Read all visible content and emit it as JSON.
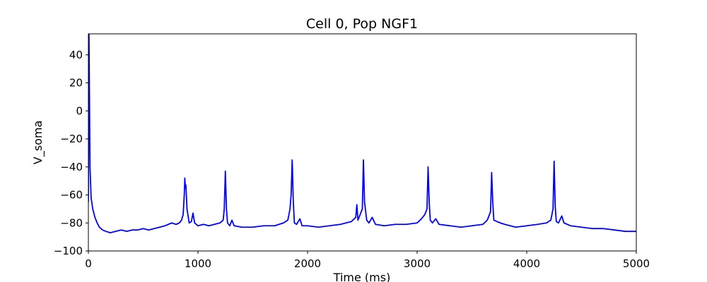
{
  "chart_data": {
    "type": "line",
    "title": "Cell 0, Pop NGF1",
    "x_label": "Time (ms)",
    "y_label": "V_soma",
    "x": [
      0,
      5,
      10,
      15,
      25,
      40,
      60,
      80,
      100,
      130,
      160,
      200,
      250,
      300,
      350,
      400,
      450,
      500,
      550,
      600,
      650,
      700,
      730,
      760,
      800,
      830,
      850,
      865,
      875,
      880,
      885,
      890,
      900,
      920,
      940,
      955,
      970,
      1000,
      1050,
      1100,
      1150,
      1200,
      1230,
      1240,
      1250,
      1260,
      1270,
      1290,
      1310,
      1330,
      1400,
      1500,
      1600,
      1700,
      1780,
      1820,
      1840,
      1850,
      1860,
      1870,
      1880,
      1900,
      1930,
      1950,
      2000,
      2100,
      2200,
      2300,
      2400,
      2440,
      2450,
      2460,
      2480,
      2500,
      2510,
      2520,
      2540,
      2560,
      2590,
      2620,
      2700,
      2800,
      2900,
      3000,
      3040,
      3070,
      3090,
      3100,
      3110,
      3120,
      3140,
      3170,
      3200,
      3300,
      3400,
      3500,
      3600,
      3640,
      3670,
      3680,
      3690,
      3700,
      3730,
      3760,
      3800,
      3900,
      4000,
      4100,
      4180,
      4220,
      4240,
      4250,
      4260,
      4270,
      4290,
      4320,
      4340,
      4400,
      4500,
      4600,
      4700,
      4800,
      4900,
      5000
    ],
    "series": [
      {
        "name": "V_soma",
        "color": "#0000ff",
        "values": [
          -65,
          60,
          10,
          -40,
          -62,
          -70,
          -76,
          -80,
          -83,
          -85,
          -86,
          -87,
          -86,
          -85,
          -86,
          -85,
          -85,
          -84,
          -85,
          -84,
          -83,
          -82,
          -81,
          -80,
          -81,
          -80,
          -78,
          -74,
          -60,
          -48,
          -55,
          -53,
          -70,
          -80,
          -79,
          -73,
          -80,
          -82,
          -81,
          -82,
          -81,
          -80,
          -78,
          -70,
          -43,
          -70,
          -80,
          -82,
          -78,
          -82,
          -83,
          -83,
          -82,
          -82,
          -80,
          -78,
          -70,
          -60,
          -35,
          -65,
          -80,
          -81,
          -77,
          -82,
          -82,
          -83,
          -82,
          -81,
          -79,
          -76,
          -67,
          -78,
          -74,
          -70,
          -35,
          -65,
          -78,
          -80,
          -76,
          -81,
          -82,
          -81,
          -81,
          -80,
          -77,
          -74,
          -70,
          -40,
          -65,
          -78,
          -80,
          -77,
          -81,
          -82,
          -83,
          -82,
          -81,
          -78,
          -72,
          -44,
          -65,
          -78,
          -79,
          -80,
          -81,
          -83,
          -82,
          -81,
          -80,
          -78,
          -70,
          -36,
          -68,
          -79,
          -80,
          -75,
          -80,
          -82,
          -83,
          -84,
          -84,
          -85,
          -86,
          -86
        ]
      }
    ],
    "xlim": [
      0,
      5000
    ],
    "ylim": [
      -100,
      55
    ],
    "xticks": [
      0,
      1000,
      2000,
      3000,
      4000,
      5000
    ],
    "yticks": [
      {
        "value": -100,
        "label": "−100"
      },
      {
        "value": -80,
        "label": "−80"
      },
      {
        "value": -60,
        "label": "−60"
      },
      {
        "value": -40,
        "label": "−40"
      },
      {
        "value": -20,
        "label": "−20"
      },
      0,
      20,
      40
    ],
    "grid": false
  }
}
